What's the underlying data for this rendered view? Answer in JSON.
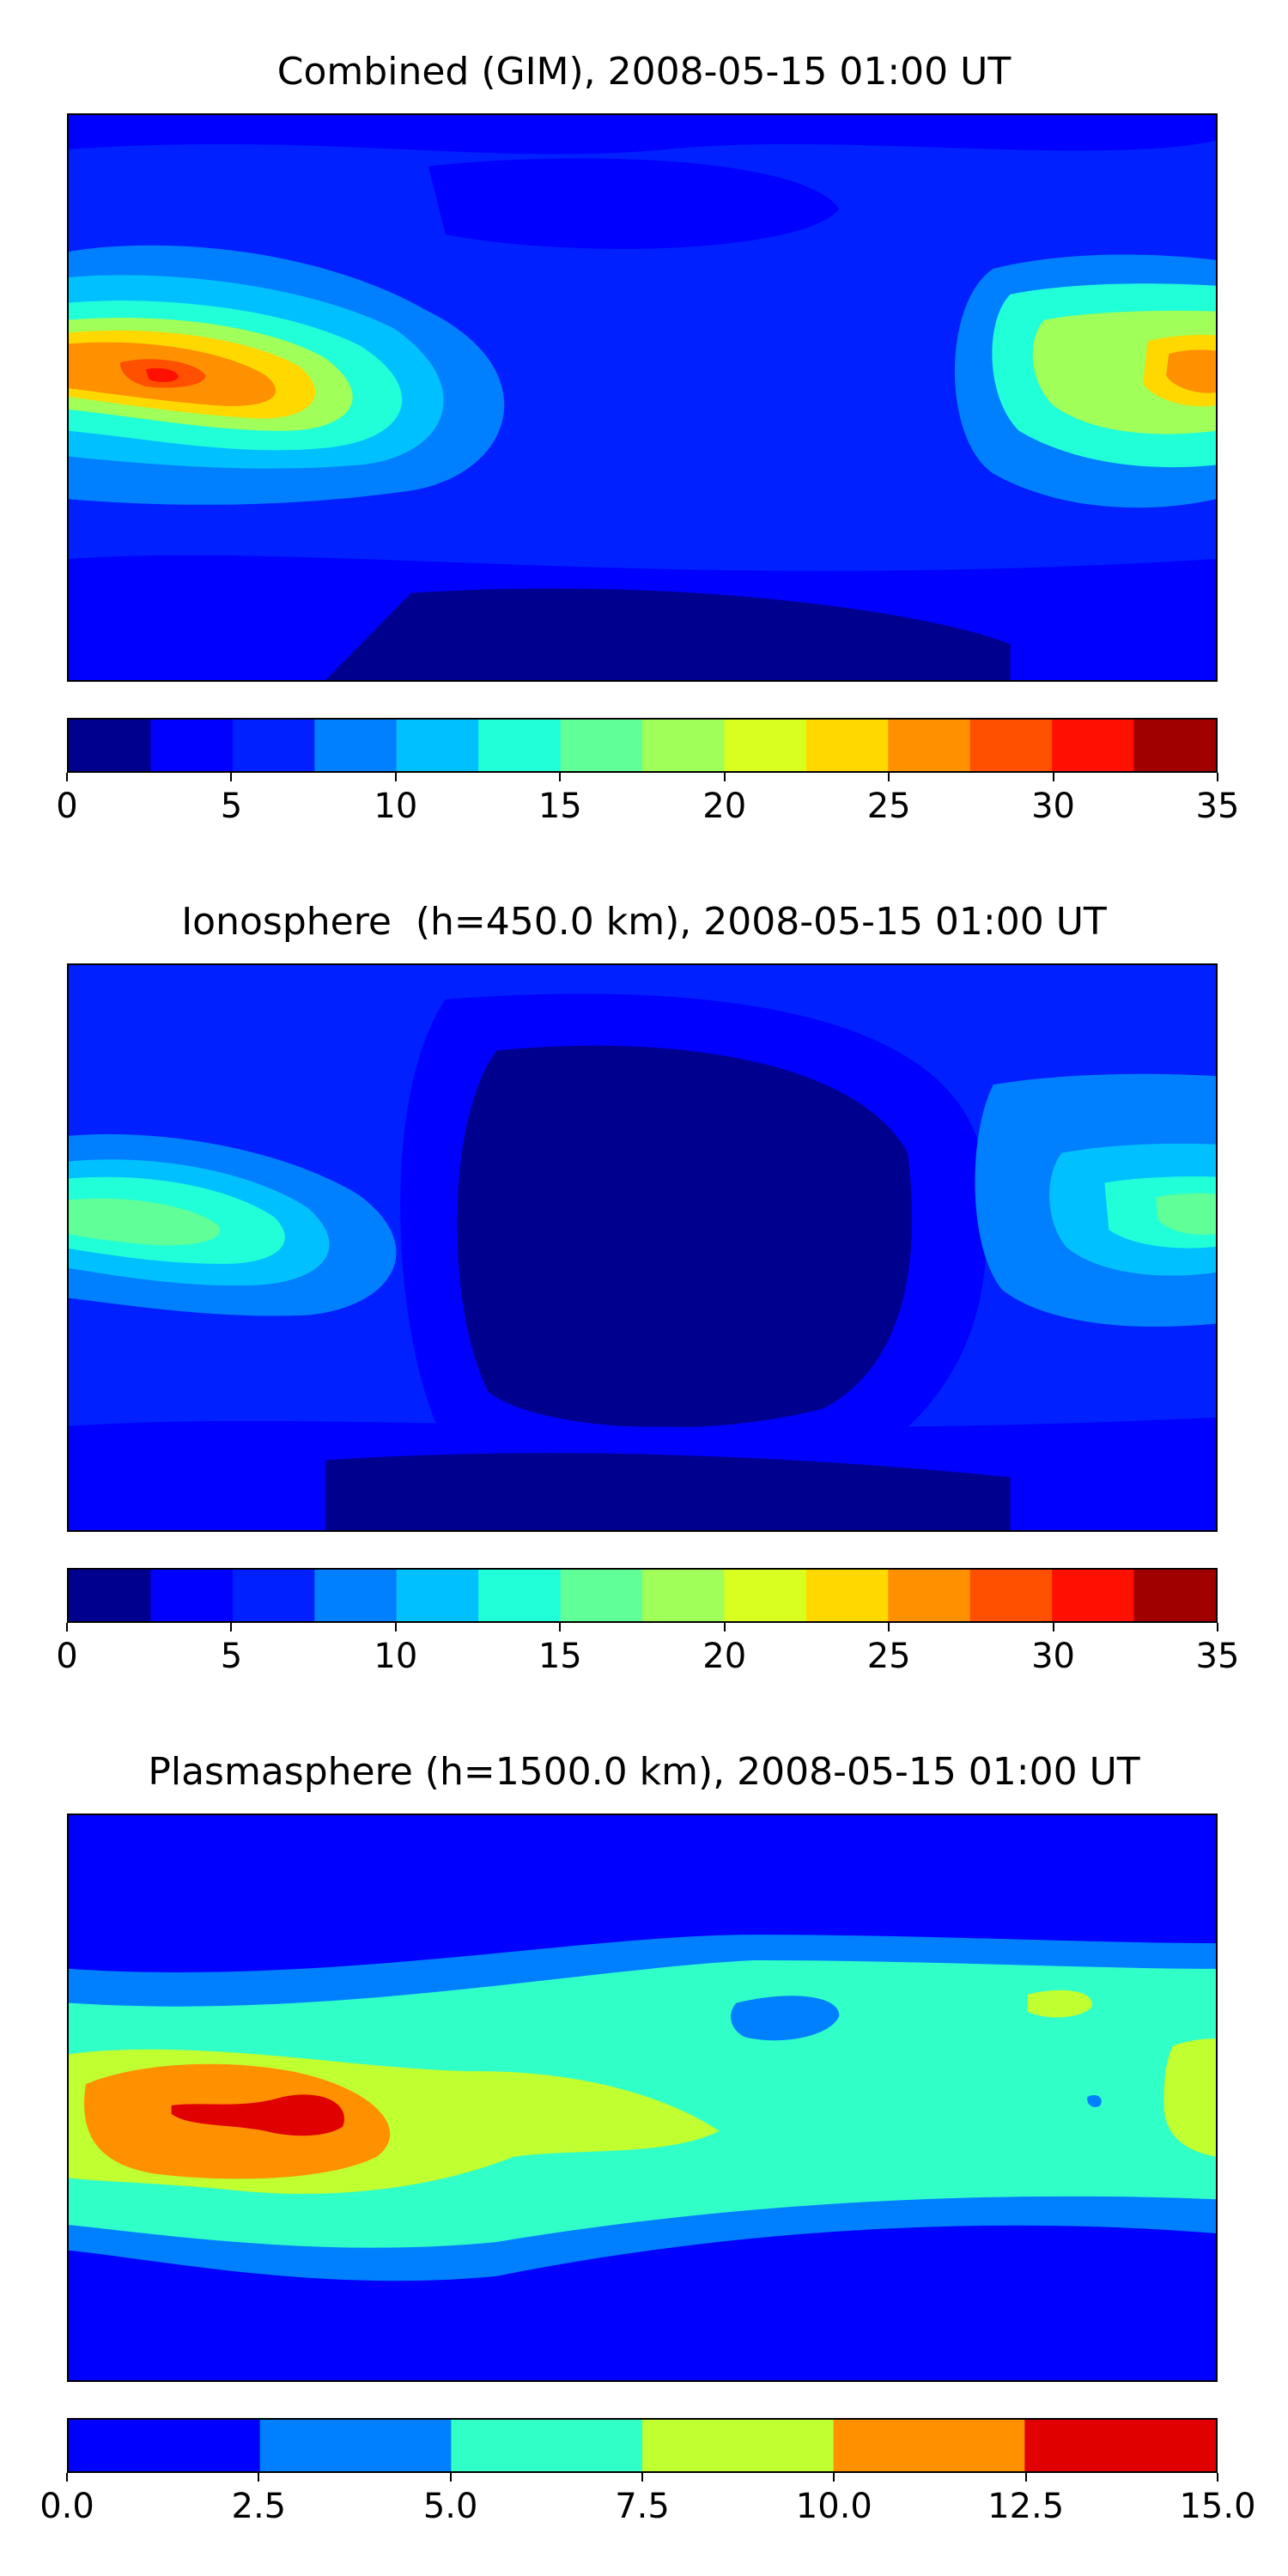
{
  "panels": [
    {
      "title": "Combined (GIM), 2008-05-15 01:00 UT",
      "colorbar": {
        "colors": [
          "#00008f",
          "#0000ff",
          "#0020ff",
          "#0080ff",
          "#00c0ff",
          "#20ffd8",
          "#60ff98",
          "#a0ff58",
          "#d8ff20",
          "#ffd800",
          "#ff9000",
          "#ff5000",
          "#ff1000",
          "#a00000"
        ],
        "tick_labels": [
          "0",
          "5",
          "10",
          "15",
          "20",
          "25",
          "30",
          "35"
        ]
      }
    },
    {
      "title": "Ionosphere  (h=450.0 km), 2008-05-15 01:00 UT",
      "colorbar": {
        "colors": [
          "#00008f",
          "#0000ff",
          "#0020ff",
          "#0080ff",
          "#00c0ff",
          "#20ffd8",
          "#60ff98",
          "#a0ff58",
          "#d8ff20",
          "#ffd800",
          "#ff9000",
          "#ff5000",
          "#ff1000",
          "#a00000"
        ],
        "tick_labels": [
          "0",
          "5",
          "10",
          "15",
          "20",
          "25",
          "30",
          "35"
        ]
      }
    },
    {
      "title": "Plasmasphere (h=1500.0 km), 2008-05-15 01:00 UT",
      "colorbar": {
        "colors": [
          "#0000ff",
          "#0080ff",
          "#30ffc8",
          "#c0ff30",
          "#ff9000",
          "#e00000"
        ],
        "tick_labels": [
          "0.0",
          "2.5",
          "5.0",
          "7.5",
          "10.0",
          "12.5",
          "15.0"
        ]
      }
    }
  ]
}
